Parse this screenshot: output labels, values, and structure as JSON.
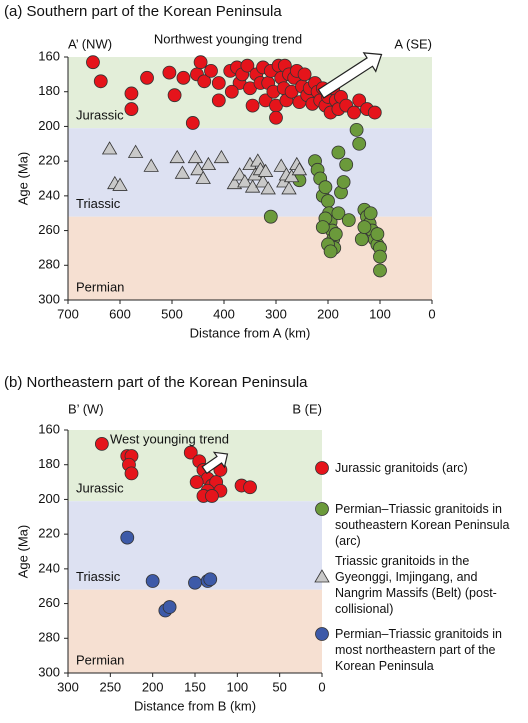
{
  "chart_data": [
    {
      "type": "scatter",
      "title": "(a)  Southern part of the Korean Peninsula",
      "x_label": "Distance from A (km)",
      "y_label": "Age (Ma)",
      "left_label": "A’ (NW)",
      "right_label": "A (SE)",
      "annotation": "Northwest younging trend",
      "xlim": [
        700,
        0
      ],
      "xticks": [
        700,
        600,
        500,
        400,
        300,
        200,
        100,
        0
      ],
      "ylim": [
        300,
        160
      ],
      "yticks": [
        160,
        180,
        200,
        220,
        240,
        260,
        280,
        300
      ],
      "periods": [
        {
          "name": "Jurassic",
          "from": 160,
          "to": 201,
          "color": "#e3eed9"
        },
        {
          "name": "Triassic",
          "from": 201,
          "to": 252,
          "color": "#dde1f2"
        },
        {
          "name": "Permian",
          "from": 252,
          "to": 300,
          "color": "#f6e0d2"
        }
      ],
      "series": [
        {
          "name": "Jurassic granitoids (arc)",
          "color": "#e5141b",
          "marker": "circle",
          "x": [
            652,
            637,
            578,
            578,
            548,
            505,
            495,
            478,
            452,
            445,
            438,
            425,
            410,
            388,
            375,
            370,
            365,
            355,
            350,
            345,
            338,
            330,
            325,
            320,
            315,
            310,
            305,
            300,
            295,
            290,
            285,
            283,
            280,
            275,
            270,
            265,
            260,
            255,
            250,
            245,
            240,
            235,
            230,
            225,
            220,
            215,
            210,
            205,
            200,
            195,
            190,
            185,
            180,
            175,
            165,
            150,
            140,
            125,
            110,
            410,
            385,
            460,
            300
          ],
          "values": [
            163,
            174,
            181,
            190,
            172,
            169,
            182,
            172,
            170,
            163,
            174,
            168,
            175,
            168,
            166,
            175,
            170,
            165,
            178,
            188,
            170,
            175,
            166,
            185,
            175,
            168,
            180,
            188,
            165,
            172,
            178,
            165,
            185,
            170,
            180,
            172,
            168,
            186,
            177,
            170,
            182,
            178,
            187,
            175,
            180,
            185,
            178,
            188,
            183,
            192,
            178,
            185,
            190,
            183,
            188,
            192,
            185,
            190,
            192,
            185,
            180,
            198,
            195
          ]
        },
        {
          "name": "Permian–Triassic granitoids in southeastern Korean Peninsula (arc)",
          "color": "#6b9a3b",
          "marker": "circle",
          "x": [
            310,
            255,
            225,
            220,
            215,
            210,
            205,
            200,
            198,
            195,
            192,
            190,
            188,
            205,
            210,
            185,
            180,
            175,
            170,
            165,
            180,
            160,
            145,
            140,
            130,
            125,
            120,
            115,
            110,
            105,
            100,
            135,
            130,
            100,
            100,
            105,
            118,
            200,
            195
          ],
          "values": [
            252,
            231,
            220,
            225,
            230,
            240,
            235,
            243,
            250,
            255,
            260,
            265,
            270,
            253,
            258,
            262,
            250,
            238,
            232,
            222,
            215,
            254,
            202,
            210,
            248,
            252,
            256,
            260,
            265,
            268,
            270,
            265,
            258,
            283,
            275,
            262,
            250,
            268,
            272
          ]
        },
        {
          "name": "Triassic granitoids in the Gyeonggi, Imjingang, and Nangrim Massifs (Belt) (post-collisional)",
          "color": "#c9c9c9",
          "marker": "triangle",
          "x": [
            620,
            610,
            600,
            570,
            540,
            490,
            480,
            455,
            450,
            440,
            430,
            405,
            380,
            370,
            360,
            350,
            345,
            340,
            335,
            330,
            325,
            320,
            315,
            290,
            285,
            280,
            275,
            270,
            260,
            255
          ],
          "values": [
            213,
            233,
            234,
            215,
            223,
            218,
            227,
            218,
            225,
            230,
            222,
            218,
            233,
            228,
            232,
            222,
            235,
            228,
            220,
            225,
            232,
            226,
            236,
            223,
            232,
            228,
            236,
            229,
            222,
            225
          ]
        }
      ]
    },
    {
      "type": "scatter",
      "title": "(b)  Northeastern part of the Korean Peninsula",
      "x_label": "Distance from B (km)",
      "y_label": "Age (Ma)",
      "left_label": "B’ (W)",
      "right_label": "B (E)",
      "annotation": "West younging trend",
      "xlim": [
        300,
        0
      ],
      "xticks": [
        300,
        250,
        200,
        150,
        100,
        50,
        0
      ],
      "ylim": [
        300,
        160
      ],
      "yticks": [
        160,
        180,
        200,
        220,
        240,
        260,
        280,
        300
      ],
      "periods": [
        {
          "name": "Jurassic",
          "from": 160,
          "to": 201,
          "color": "#e3eed9"
        },
        {
          "name": "Triassic",
          "from": 201,
          "to": 252,
          "color": "#dde1f2"
        },
        {
          "name": "Permian",
          "from": 252,
          "to": 300,
          "color": "#f6e0d2"
        }
      ],
      "series": [
        {
          "color": "#e5141b",
          "marker": "circle",
          "x": [
            260,
            230,
            225,
            228,
            225,
            155,
            145,
            140,
            135,
            130,
            125,
            120,
            135,
            140,
            130,
            148,
            120,
            95,
            85
          ],
          "values": [
            168,
            175,
            175,
            180,
            185,
            173,
            178,
            183,
            188,
            192,
            190,
            195,
            195,
            198,
            198,
            190,
            183,
            192,
            193
          ]
        },
        {
          "name": "Permian–Triassic granitoids in most northeastern part of the Korean Peninsula",
          "color": "#3d5aa8",
          "marker": "circle",
          "x": [
            230,
            200,
            150,
            135,
            132,
            185,
            180
          ],
          "values": [
            222,
            247,
            248,
            247,
            246,
            264,
            262
          ]
        }
      ]
    }
  ]
}
